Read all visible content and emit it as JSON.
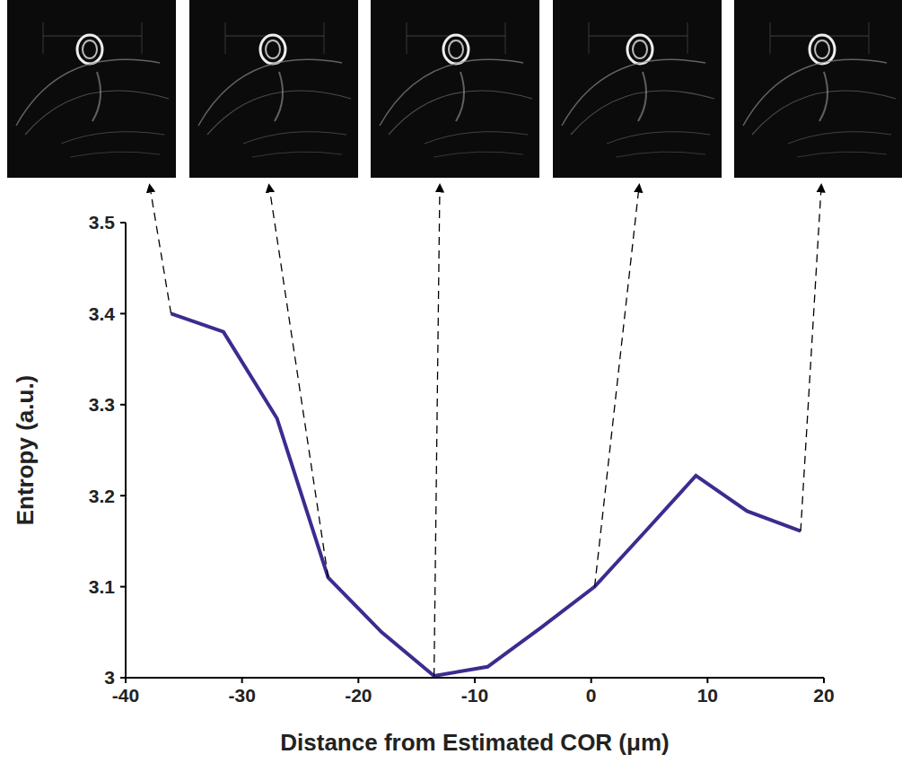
{
  "chart_data": {
    "type": "line",
    "x_label": "Distance from Estimated COR (μm)",
    "y_label": "Entropy (a.u.)",
    "x": [
      -36.1,
      -31.6,
      -27.0,
      -22.6,
      -18.0,
      -13.5,
      -8.9,
      -4.3,
      0.3,
      4.6,
      9.0,
      13.4,
      18.0
    ],
    "values": [
      3.4,
      3.38,
      3.285,
      3.11,
      3.05,
      3.002,
      3.012,
      3.055,
      3.1,
      3.16,
      3.222,
      3.183,
      3.161
    ],
    "color": "#3b2c8f",
    "xlim": [
      -40,
      20
    ],
    "ylim": [
      3,
      3.5
    ],
    "xticks": [
      -40,
      -30,
      -20,
      -10,
      0,
      10,
      20
    ],
    "yticks": [
      3,
      3.1,
      3.2,
      3.3,
      3.4,
      3.5
    ]
  }
}
